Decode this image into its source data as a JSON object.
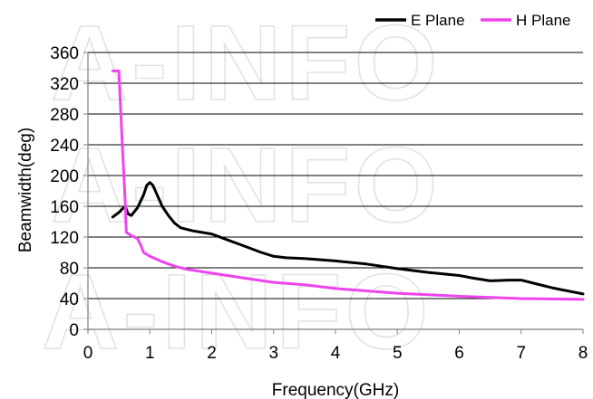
{
  "watermark": {
    "text": "A-INFO"
  },
  "colors": {
    "e_plane": "#000000",
    "h_plane": "#ee44ee",
    "grid": "#000000",
    "axis": "#7f7f7f",
    "watermark": "#d9d9d9"
  },
  "chart_data": {
    "type": "line",
    "title": "",
    "xlabel": "Frequency(GHz)",
    "ylabel": "Beamwidth(deg)",
    "xlim": [
      0,
      8
    ],
    "ylim": [
      0,
      360
    ],
    "xticks": [
      0,
      1,
      2,
      3,
      4,
      5,
      6,
      7,
      8
    ],
    "yticks": [
      0,
      40,
      80,
      120,
      160,
      200,
      240,
      280,
      320,
      360
    ],
    "grid": "horizontal major lines",
    "legend_position": "top-right",
    "series": [
      {
        "name": "E Plane",
        "color": "#000000",
        "points": [
          [
            0.4,
            146
          ],
          [
            0.5,
            152
          ],
          [
            0.6,
            160
          ],
          [
            0.65,
            150
          ],
          [
            0.7,
            148
          ],
          [
            0.8,
            158
          ],
          [
            0.9,
            175
          ],
          [
            0.95,
            187
          ],
          [
            1.0,
            191
          ],
          [
            1.05,
            187
          ],
          [
            1.1,
            178
          ],
          [
            1.2,
            160
          ],
          [
            1.3,
            148
          ],
          [
            1.4,
            138
          ],
          [
            1.5,
            132
          ],
          [
            1.7,
            128
          ],
          [
            2.0,
            124
          ],
          [
            2.3,
            115
          ],
          [
            2.6,
            106
          ],
          [
            2.8,
            100
          ],
          [
            3.0,
            95
          ],
          [
            3.2,
            93
          ],
          [
            3.5,
            92
          ],
          [
            4.0,
            89
          ],
          [
            4.5,
            85
          ],
          [
            5.0,
            79
          ],
          [
            5.5,
            74
          ],
          [
            6.0,
            70
          ],
          [
            6.2,
            67
          ],
          [
            6.5,
            63
          ],
          [
            6.8,
            64
          ],
          [
            7.0,
            64
          ],
          [
            7.2,
            60
          ],
          [
            7.5,
            54
          ],
          [
            8.0,
            46
          ]
        ]
      },
      {
        "name": "H Plane",
        "color": "#ee44ee",
        "points": [
          [
            0.4,
            336
          ],
          [
            0.5,
            336
          ],
          [
            0.55,
            250
          ],
          [
            0.6,
            170
          ],
          [
            0.62,
            126
          ],
          [
            0.7,
            122
          ],
          [
            0.8,
            118
          ],
          [
            0.85,
            110
          ],
          [
            0.9,
            100
          ],
          [
            1.0,
            95
          ],
          [
            1.2,
            88
          ],
          [
            1.4,
            82
          ],
          [
            1.6,
            78
          ],
          [
            2.0,
            73
          ],
          [
            2.5,
            67
          ],
          [
            3.0,
            61
          ],
          [
            3.5,
            58
          ],
          [
            4.0,
            53
          ],
          [
            5.0,
            47
          ],
          [
            6.0,
            43
          ],
          [
            7.0,
            40
          ],
          [
            8.0,
            39
          ]
        ]
      }
    ]
  }
}
